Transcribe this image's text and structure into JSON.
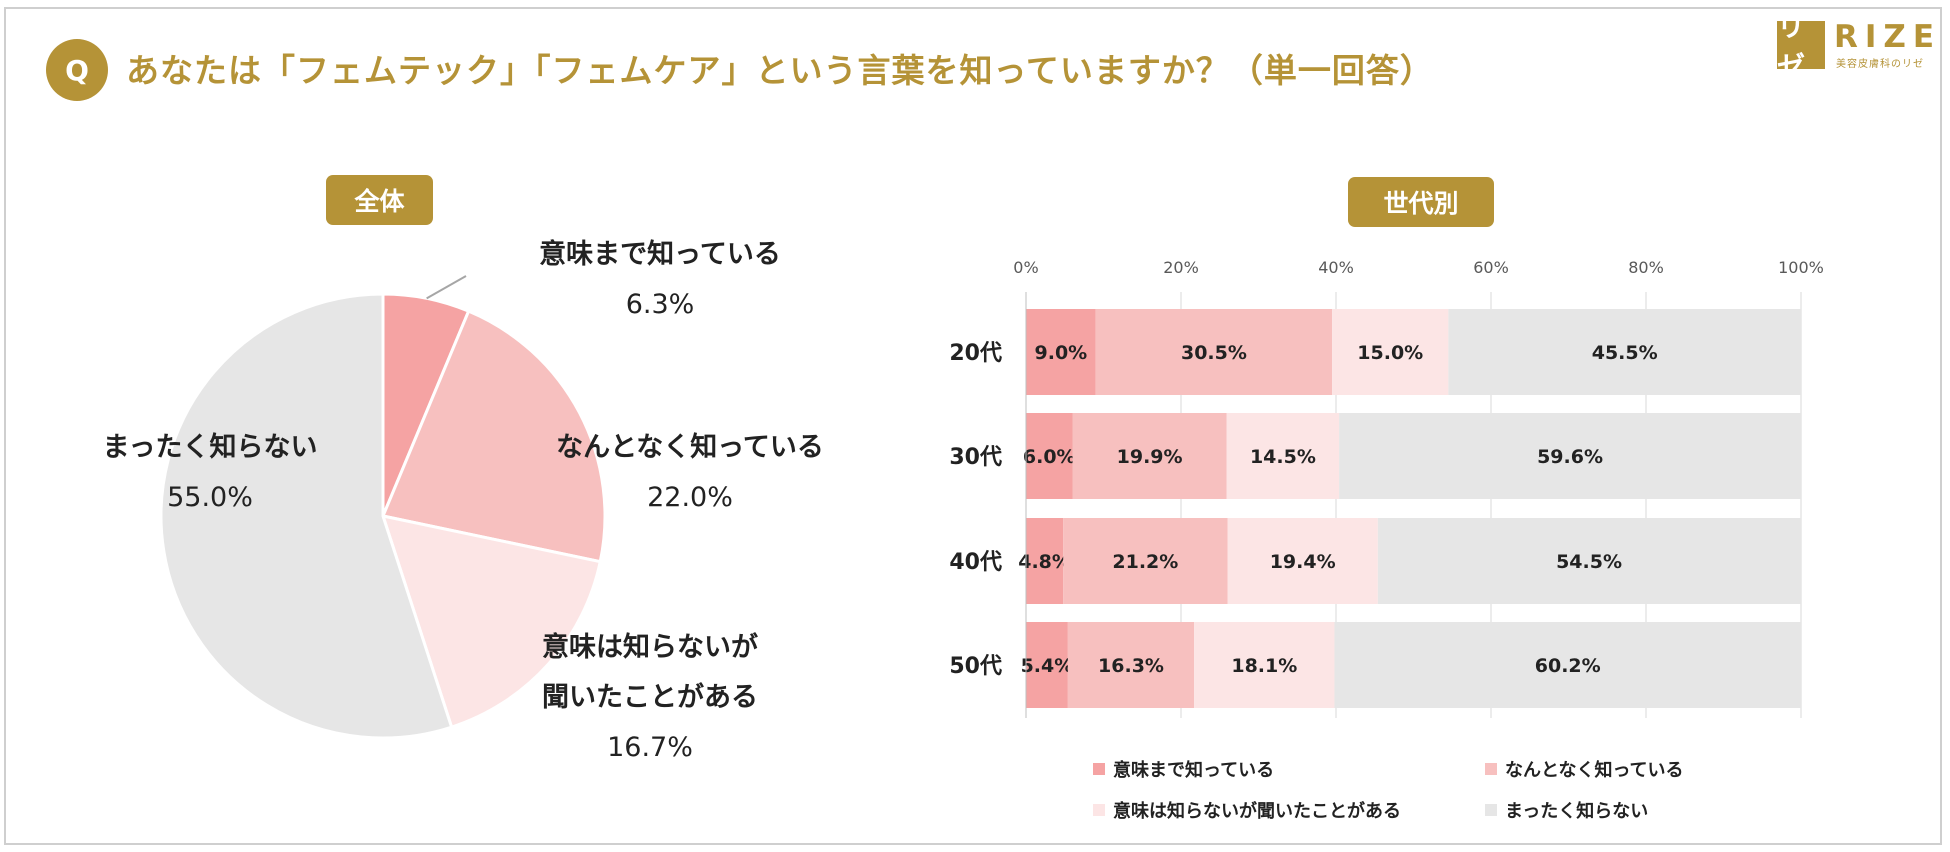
{
  "question": "あなたは「フェムテック」「フェムケア」という言葉を知っていますか？（単一回答）",
  "q_badge": "Q",
  "logo": {
    "mark": "リゼ",
    "text": "RIZE",
    "sub": "美容皮膚科のリゼ"
  },
  "colors": {
    "accent": "#b59337",
    "c1": "#f5a3a3",
    "c2": "#f7c0bf",
    "c3": "#fce5e5",
    "c4": "#e6e6e6"
  },
  "pie_panel": {
    "title": "全体",
    "labels": [
      {
        "line1": "意味まで知っている",
        "value": "6.3%"
      },
      {
        "line1": "なんとなく知っている",
        "value": "22.0%"
      },
      {
        "line1": "意味は知らないが",
        "line2": "聞いたことがある",
        "value": "16.7%"
      },
      {
        "line1": "まったく知らない",
        "value": "55.0%"
      }
    ]
  },
  "bar_panel": {
    "title": "世代別"
  },
  "chart_data": [
    {
      "type": "pie",
      "title": "全体",
      "categories": [
        "意味まで知っている",
        "なんとなく知っている",
        "意味は知らないが聞いたことがある",
        "まったく知らない"
      ],
      "values": [
        6.3,
        22.0,
        16.7,
        55.0
      ],
      "unit": "%"
    },
    {
      "type": "bar",
      "orientation": "horizontal",
      "stacked": true,
      "title": "世代別",
      "categories": [
        "20代",
        "30代",
        "40代",
        "50代"
      ],
      "x_ticks": [
        "0%",
        "20%",
        "40%",
        "60%",
        "80%",
        "100%"
      ],
      "xlim": [
        0,
        100
      ],
      "series": [
        {
          "name": "意味まで知っている",
          "values": [
            9.0,
            6.0,
            4.8,
            5.4
          ],
          "labels": [
            "9.0%",
            "6.0%",
            "4.8%",
            "5.4%"
          ]
        },
        {
          "name": "なんとなく知っている",
          "values": [
            30.5,
            19.9,
            21.2,
            16.3
          ],
          "labels": [
            "30.5%",
            "19.9%",
            "21.2%",
            "16.3%"
          ]
        },
        {
          "name": "意味は知らないが聞いたことがある",
          "values": [
            15.0,
            14.5,
            19.4,
            18.1
          ],
          "labels": [
            "15.0%",
            "14.5%",
            "19.4%",
            "18.1%"
          ]
        },
        {
          "name": "まったく知らない",
          "values": [
            45.5,
            59.6,
            54.5,
            60.2
          ],
          "labels": [
            "45.5%",
            "59.6%",
            "54.5%",
            "60.2%"
          ]
        }
      ],
      "legend_position": "bottom"
    }
  ]
}
